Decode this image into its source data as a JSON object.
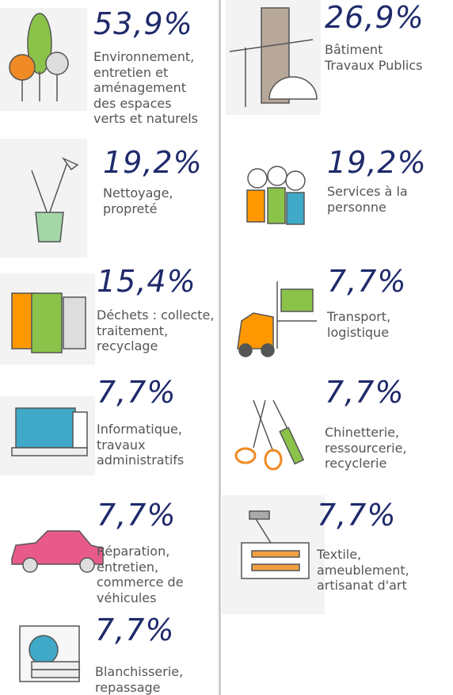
{
  "items": [
    {
      "percent": "53,9%",
      "label_lines": [
        "Environnement,",
        "entretien et",
        "aménagement",
        "des espaces",
        "verts et naturels"
      ]
    },
    {
      "percent": "19,2%",
      "label_lines": [
        "Nettoyage,",
        "propreté"
      ]
    },
    {
      "percent": "15,4%",
      "label_lines": [
        "Déchets : collecte,",
        "traitement,",
        "recyclage"
      ]
    },
    {
      "percent": "7,7%",
      "label_lines": [
        "Informatique,",
        "travaux",
        "administratifs"
      ]
    },
    {
      "percent": "7,7%",
      "label_lines": [
        "Réparation,",
        "entretien,",
        "commerce de",
        "véhicules"
      ]
    },
    {
      "percent": "7,7%",
      "label_lines": [
        "Blanchisserie,",
        "repassage"
      ]
    },
    {
      "percent": "26,9%",
      "label_lines": [
        "Bâtiment",
        "Travaux Publics"
      ]
    },
    {
      "percent": "19,2%",
      "label_lines": [
        "Services à la",
        "personne"
      ]
    },
    {
      "percent": "7,7%",
      "label_lines": [
        "Transport,",
        "logistique"
      ]
    },
    {
      "percent": "7,7%",
      "label_lines": [
        "Chinetterie,",
        "ressourcerie,",
        "recyclerie"
      ]
    },
    {
      "percent": "7,7%",
      "label_lines": [
        "Textile,",
        "ameublement,",
        "artisanat d'art"
      ]
    }
  ]
}
